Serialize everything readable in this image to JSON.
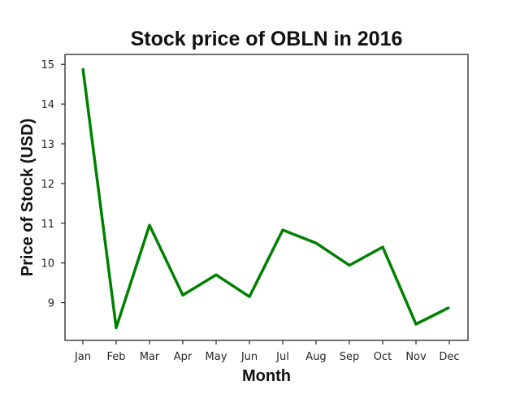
{
  "chart_data": {
    "type": "line",
    "title": "Stock price of OBLN in 2016",
    "xlabel": "Month",
    "ylabel": "Price of Stock (USD)",
    "categories": [
      "Jan",
      "Feb",
      "Mar",
      "Apr",
      "May",
      "Jun",
      "Jul",
      "Aug",
      "Sep",
      "Oct",
      "Nov",
      "Dec"
    ],
    "series": [
      {
        "values": [
          14.9,
          8.37,
          10.95,
          9.19,
          9.7,
          9.15,
          10.83,
          10.5,
          9.94,
          10.4,
          8.46,
          8.88
        ],
        "color": "#008000"
      }
    ],
    "yticks": [
      "9",
      "10",
      "11",
      "12",
      "13",
      "14",
      "15"
    ],
    "ylim": [
      8.05,
      15.25
    ],
    "grid": false,
    "legend": "none"
  }
}
